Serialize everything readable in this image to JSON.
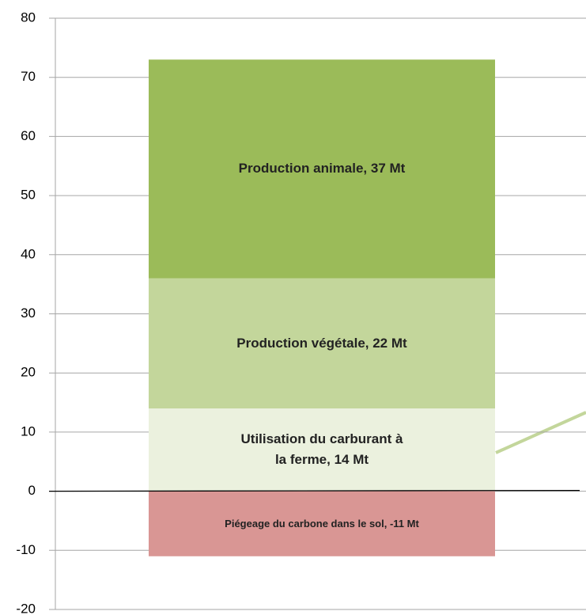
{
  "chart_data": {
    "type": "stacked_bar",
    "categories": [
      null
    ],
    "series": [
      {
        "name": "Utilisation du carburant à la ferme, 14 Mt",
        "color": "#ebf1de",
        "values": [
          14
        ]
      },
      {
        "name": "Production végétale, 22 Mt",
        "color": "#c3d69b",
        "values": [
          22
        ]
      },
      {
        "name": "Production animale, 37 Mt",
        "color": "#9bbb59",
        "values": [
          37
        ]
      },
      {
        "name": "Piégeage du carbone dans le sol, -11 Mt",
        "color": "#d99694",
        "values": [
          -11
        ]
      }
    ],
    "ylim": [
      -20,
      80
    ],
    "yticks": [
      -20,
      -10,
      0,
      10,
      20,
      30,
      40,
      50,
      60,
      70,
      80
    ],
    "grid": true
  }
}
